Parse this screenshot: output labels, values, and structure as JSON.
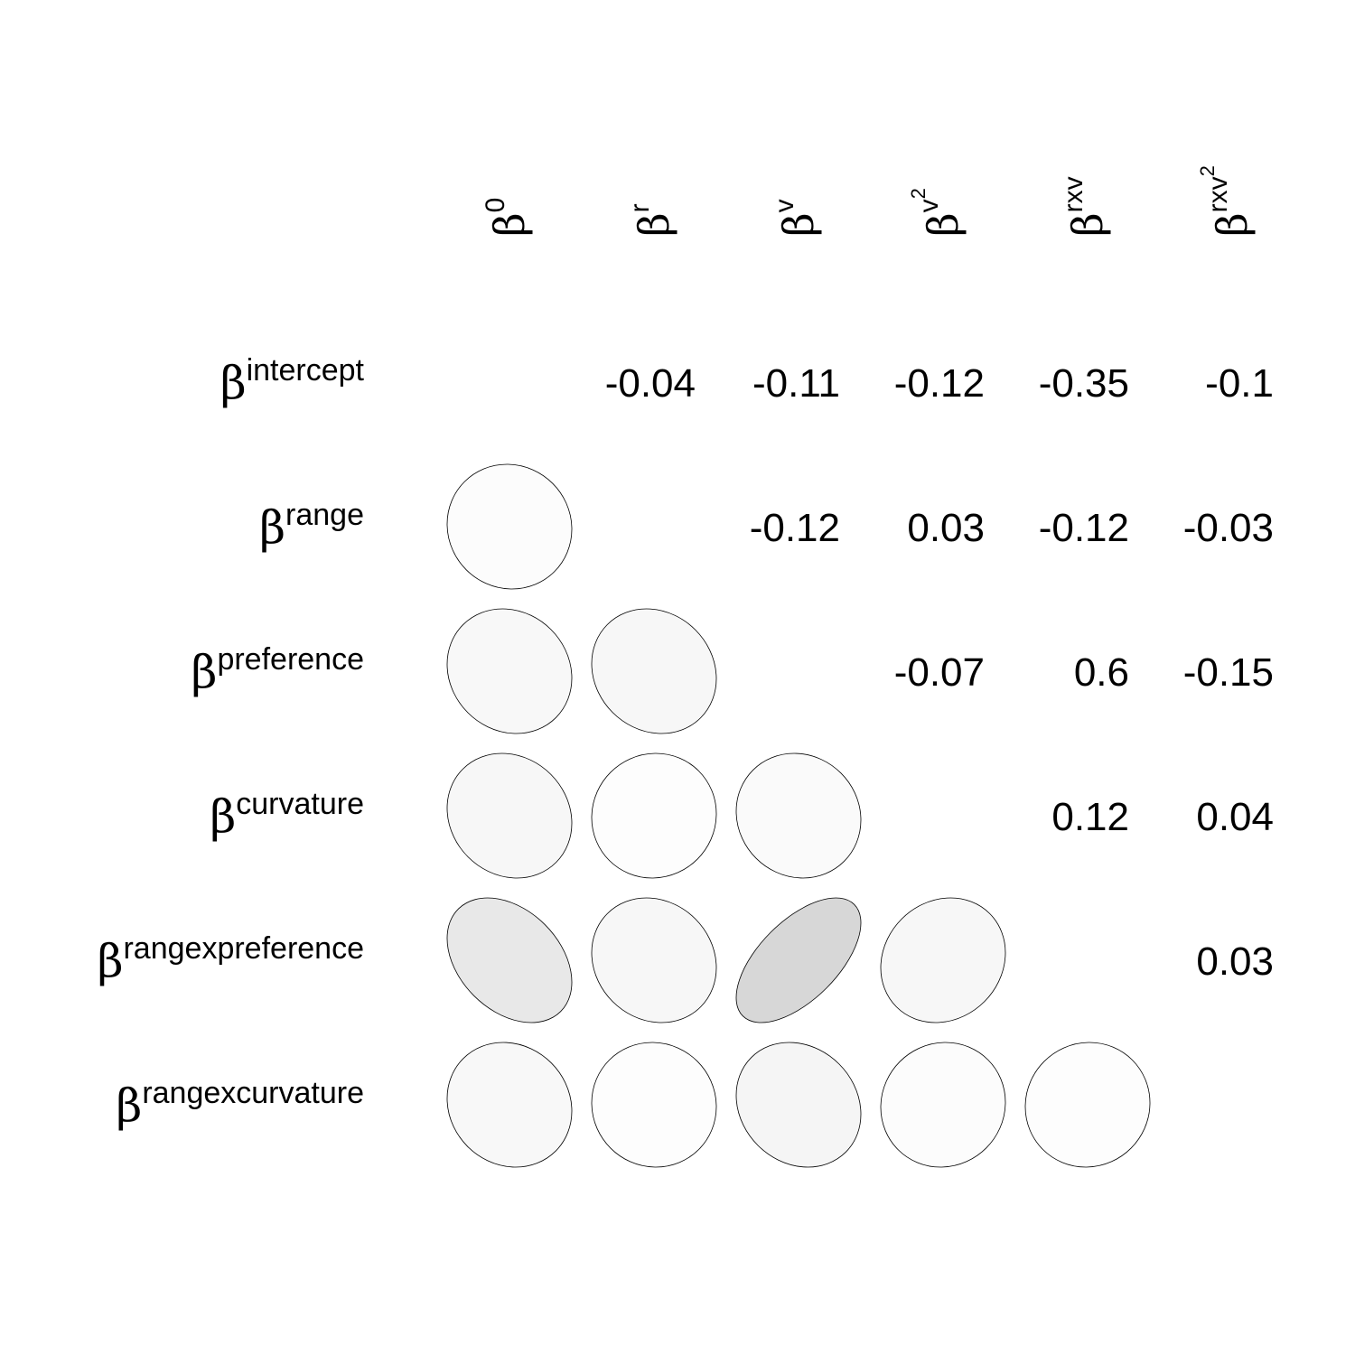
{
  "chart_data": {
    "type": "heatmap",
    "title": "",
    "col_labels": [
      {
        "base": "β",
        "sup": "0",
        "sup2": ""
      },
      {
        "base": "β",
        "sup": "r",
        "sup2": ""
      },
      {
        "base": "β",
        "sup": "v",
        "sup2": ""
      },
      {
        "base": "β",
        "sup": "v",
        "sup2": "2"
      },
      {
        "base": "β",
        "sup": "rxv",
        "sup2": ""
      },
      {
        "base": "β",
        "sup": "rxv",
        "sup2": "2"
      }
    ],
    "row_labels": [
      {
        "base": "β",
        "sup": "intercept"
      },
      {
        "base": "β",
        "sup": "range"
      },
      {
        "base": "β",
        "sup": "preference"
      },
      {
        "base": "β",
        "sup": "curvature"
      },
      {
        "base": "β",
        "sup": "rangexpreference"
      },
      {
        "base": "β",
        "sup": "rangexcurvature"
      }
    ],
    "upper_labels": [
      {
        "row": 0,
        "col": 1,
        "text": "-0.04"
      },
      {
        "row": 0,
        "col": 2,
        "text": "-0.11"
      },
      {
        "row": 0,
        "col": 3,
        "text": "-0.12"
      },
      {
        "row": 0,
        "col": 4,
        "text": "-0.35"
      },
      {
        "row": 0,
        "col": 5,
        "text": "-0.1"
      },
      {
        "row": 1,
        "col": 2,
        "text": "-0.12"
      },
      {
        "row": 1,
        "col": 3,
        "text": "0.03"
      },
      {
        "row": 1,
        "col": 4,
        "text": "-0.12"
      },
      {
        "row": 1,
        "col": 5,
        "text": "-0.03"
      },
      {
        "row": 2,
        "col": 3,
        "text": "-0.07"
      },
      {
        "row": 2,
        "col": 4,
        "text": "0.6"
      },
      {
        "row": 2,
        "col": 5,
        "text": "-0.15"
      },
      {
        "row": 3,
        "col": 4,
        "text": "0.12"
      },
      {
        "row": 3,
        "col": 5,
        "text": "0.04"
      },
      {
        "row": 4,
        "col": 5,
        "text": "0.03"
      }
    ],
    "lower_cells": [
      {
        "row": 1,
        "col": 0,
        "r": -0.04
      },
      {
        "row": 2,
        "col": 0,
        "r": -0.11
      },
      {
        "row": 2,
        "col": 1,
        "r": -0.12
      },
      {
        "row": 3,
        "col": 0,
        "r": -0.12
      },
      {
        "row": 3,
        "col": 1,
        "r": 0.03
      },
      {
        "row": 3,
        "col": 2,
        "r": -0.07
      },
      {
        "row": 4,
        "col": 0,
        "r": -0.35
      },
      {
        "row": 4,
        "col": 1,
        "r": -0.12
      },
      {
        "row": 4,
        "col": 2,
        "r": 0.6
      },
      {
        "row": 4,
        "col": 3,
        "r": 0.12
      },
      {
        "row": 5,
        "col": 0,
        "r": -0.1
      },
      {
        "row": 5,
        "col": 1,
        "r": -0.03
      },
      {
        "row": 5,
        "col": 2,
        "r": -0.15
      },
      {
        "row": 5,
        "col": 3,
        "r": 0.04
      },
      {
        "row": 5,
        "col": 4,
        "r": 0.03
      }
    ],
    "value_range": [
      -1,
      1
    ],
    "colors": {
      "fill_max": "#000000",
      "stroke": "#000000",
      "background": "#ffffff"
    },
    "grid": false,
    "legend": "none"
  }
}
